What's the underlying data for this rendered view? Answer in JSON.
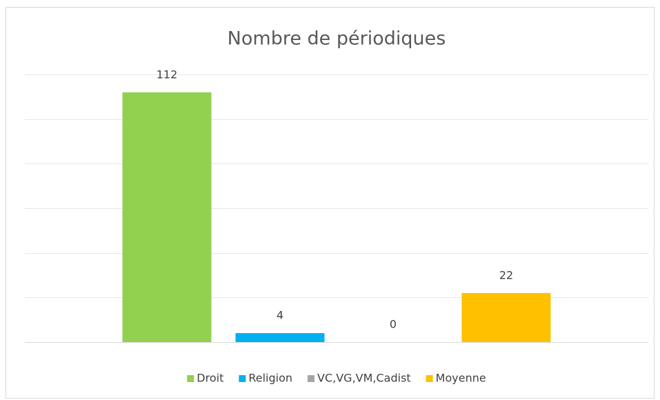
{
  "chart_data": {
    "type": "bar",
    "title": "Nombre de périodiques",
    "categories": [
      null
    ],
    "series": [
      {
        "name": "Droit",
        "color": "#92d050",
        "values": [
          112
        ]
      },
      {
        "name": "Religion",
        "color": "#00b0f0",
        "values": [
          4
        ]
      },
      {
        "name": "VC,VG,VM,Cadist",
        "color": "#a5a5a5",
        "values": [
          0
        ]
      },
      {
        "name": "Moyenne",
        "color": "#ffc000",
        "values": [
          22
        ]
      }
    ],
    "ylim": [
      0,
      120
    ],
    "yticks": [
      0,
      20,
      40,
      60,
      80,
      100,
      120
    ],
    "grid": true,
    "legend": "bottom"
  }
}
